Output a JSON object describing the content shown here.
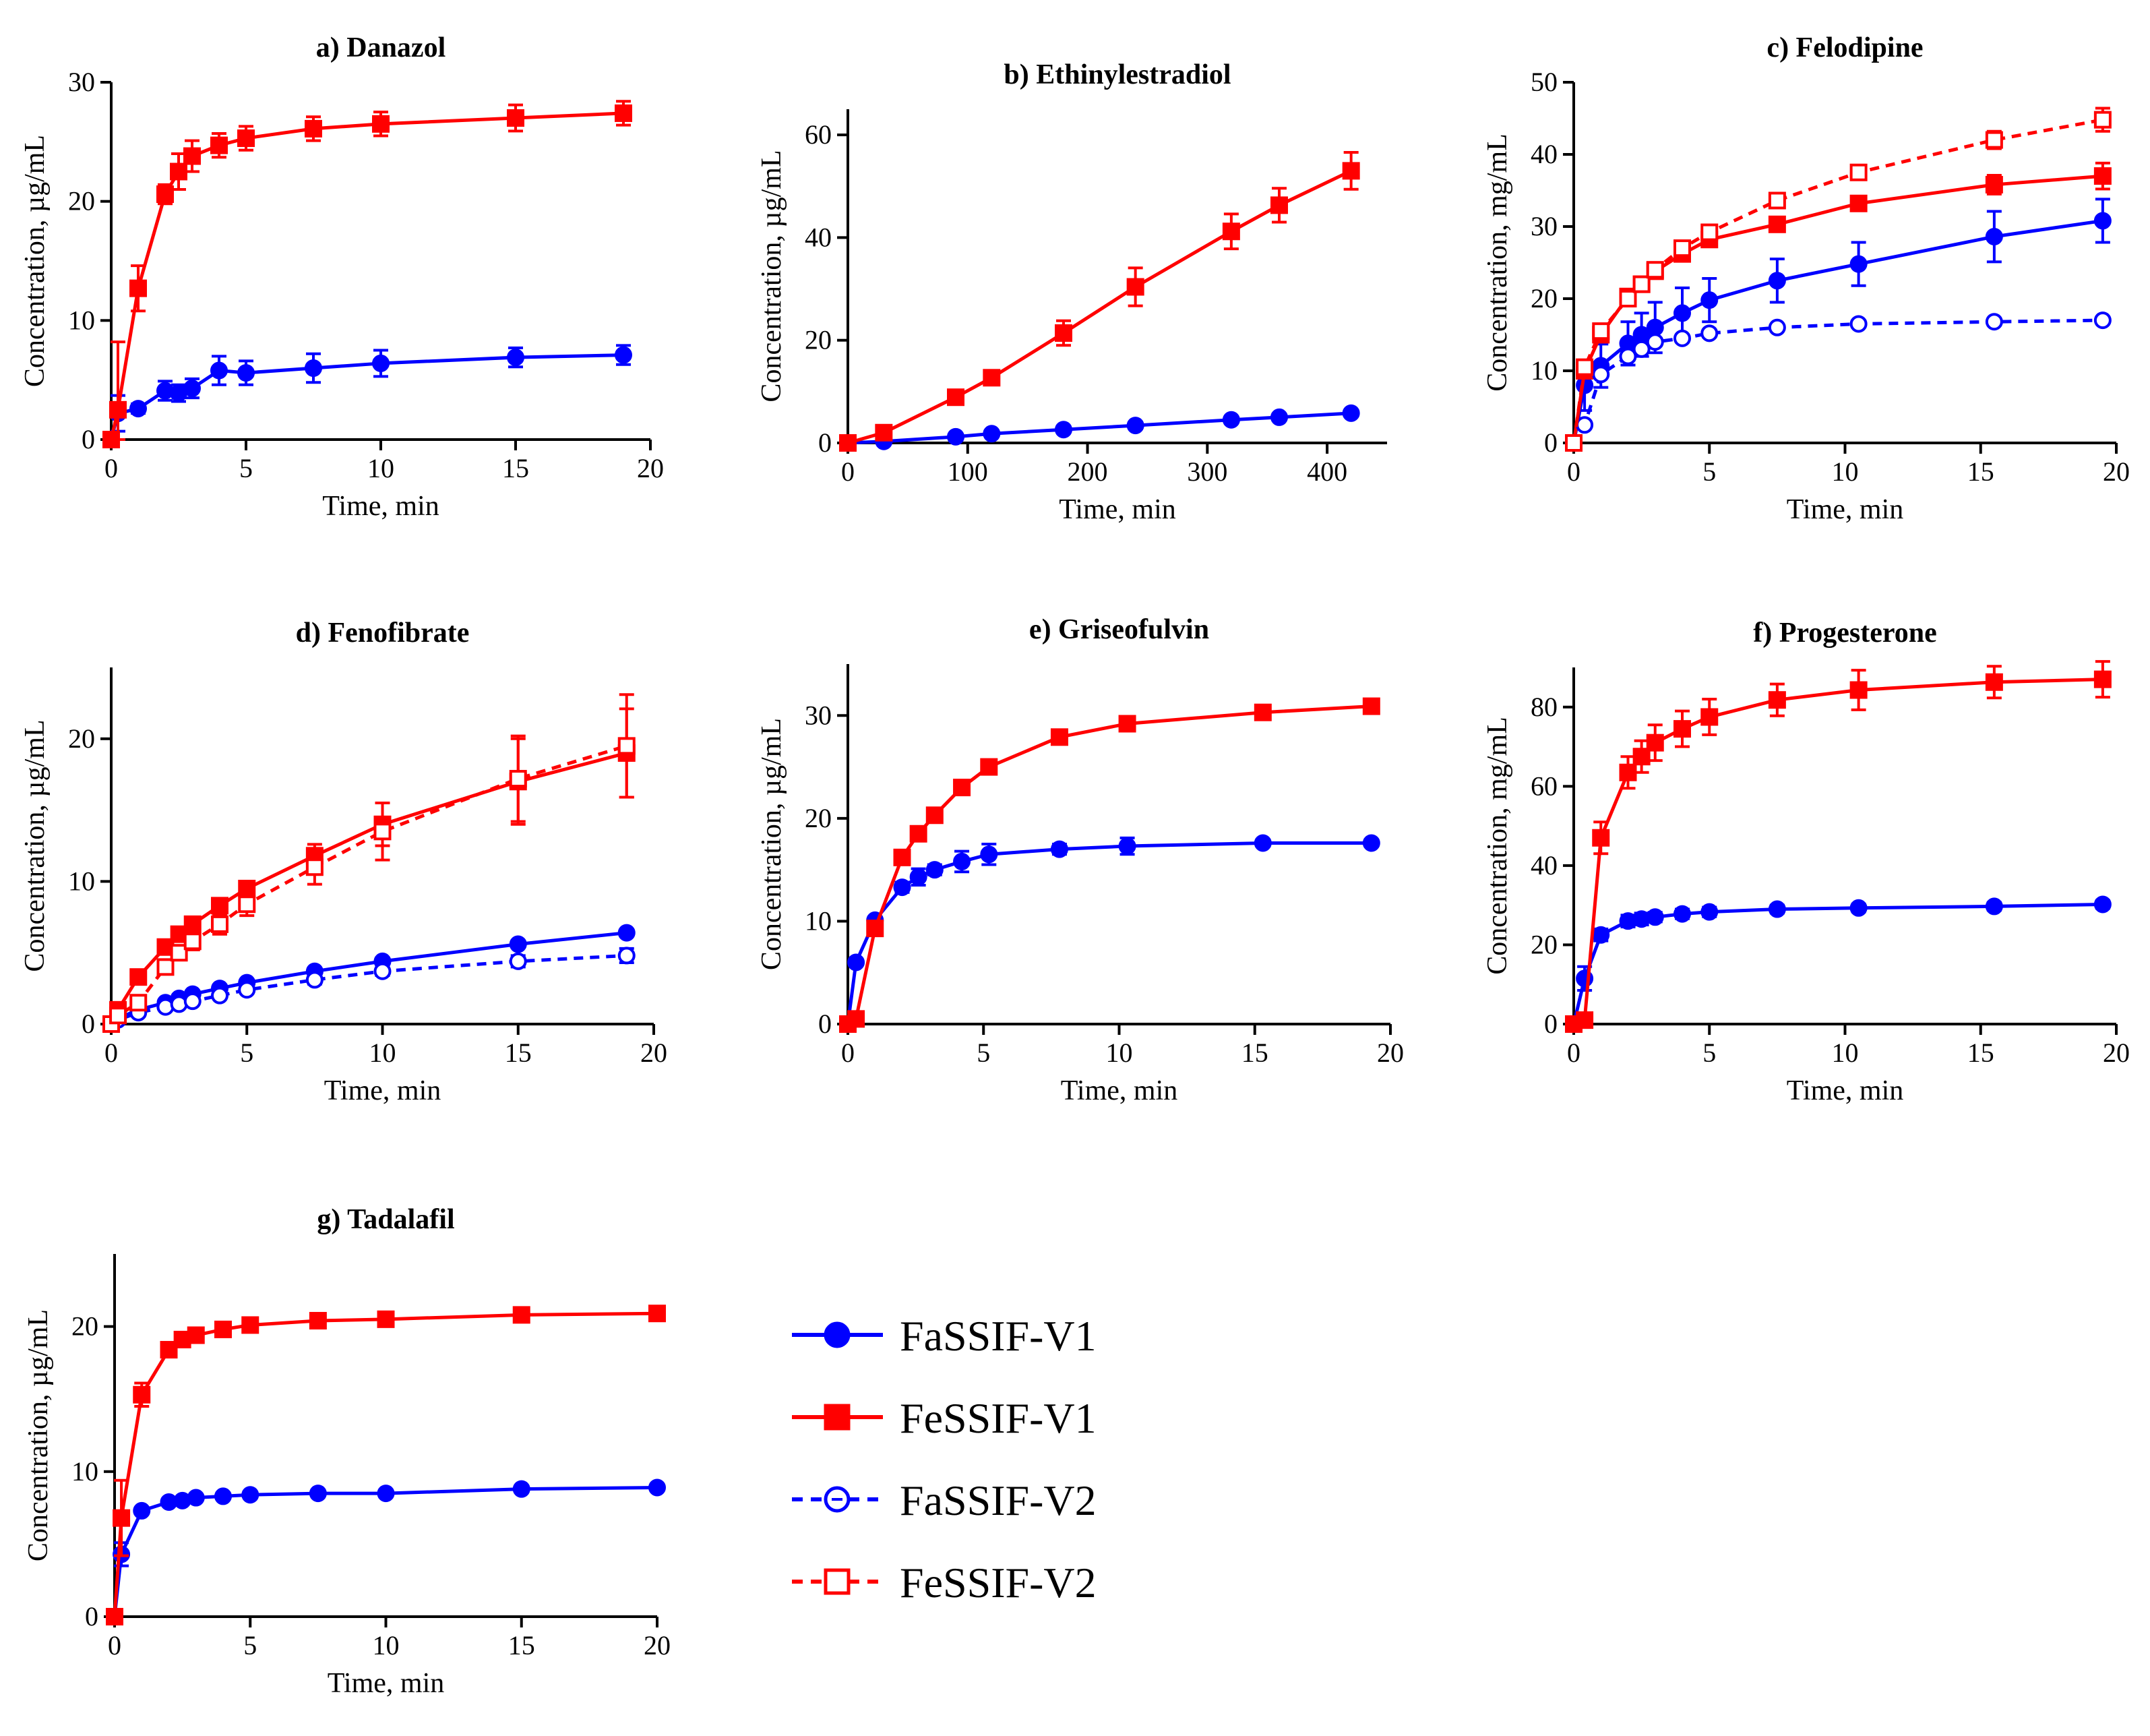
{
  "figure": {
    "legend": [
      {
        "label": "FaSSIF-V1",
        "color": "#0000ff",
        "marker": "circle-filled",
        "dashed": false
      },
      {
        "label": "FeSSIF-V1",
        "color": "#ff0000",
        "marker": "square-filled",
        "dashed": false
      },
      {
        "label": "FaSSIF-V2",
        "color": "#0000ff",
        "marker": "circle-open",
        "dashed": true
      },
      {
        "label": "FeSSIF-V2",
        "color": "#ff0000",
        "marker": "square-open",
        "dashed": true
      }
    ]
  },
  "chart_data": [
    {
      "type": "line",
      "title": "a) Danazol",
      "xlabel": "Time, min",
      "ylabel": "Concentration, µg/mL",
      "xlim": [
        0,
        20
      ],
      "ylim": [
        0,
        30
      ],
      "xticks": [
        0,
        5,
        10,
        15,
        20
      ],
      "yticks": [
        0,
        10,
        20,
        30
      ],
      "series": [
        {
          "name": "FaSSIF-V1",
          "x": [
            0,
            0.25,
            1,
            2,
            2.5,
            3,
            4,
            5,
            7.5,
            10,
            15,
            19
          ],
          "y": [
            0,
            2.2,
            2.6,
            4.1,
            3.9,
            4.3,
            5.8,
            5.6,
            6.0,
            6.4,
            6.9,
            7.1
          ],
          "err": [
            0,
            1.5,
            0.4,
            0.8,
            0.7,
            0.8,
            1.2,
            1.0,
            1.2,
            1.1,
            0.8,
            0.8
          ]
        },
        {
          "name": "FeSSIF-V1",
          "x": [
            0,
            0.25,
            1,
            2,
            2.5,
            3,
            4,
            5,
            7.5,
            10,
            15,
            19
          ],
          "y": [
            0,
            2.5,
            12.7,
            20.6,
            22.5,
            23.8,
            24.7,
            25.3,
            26.1,
            26.5,
            27.0,
            27.4
          ],
          "err": [
            0,
            5.7,
            1.9,
            0.8,
            1.5,
            1.3,
            1.0,
            1.0,
            1.0,
            1.0,
            1.1,
            1.0
          ]
        }
      ]
    },
    {
      "type": "line",
      "title": "b) Ethinylestradiol",
      "xlabel": "Time, min",
      "ylabel": "Concentration, µg/mL",
      "xlim": [
        0,
        450
      ],
      "ylim": [
        0,
        65
      ],
      "xticks": [
        0,
        100,
        200,
        300,
        400
      ],
      "yticks": [
        0,
        20,
        40,
        60
      ],
      "series": [
        {
          "name": "FaSSIF-V1",
          "x": [
            0,
            30,
            90,
            120,
            180,
            240,
            320,
            360,
            420
          ],
          "y": [
            0,
            0.3,
            1.2,
            1.8,
            2.6,
            3.4,
            4.5,
            5.0,
            5.8
          ],
          "err": [
            0,
            0,
            0,
            0,
            0,
            0,
            0,
            0,
            0
          ]
        },
        {
          "name": "FeSSIF-V1",
          "x": [
            0,
            30,
            90,
            120,
            180,
            240,
            320,
            360,
            420
          ],
          "y": [
            0,
            2.0,
            8.9,
            12.7,
            21.4,
            30.4,
            41.2,
            46.3,
            53.0
          ],
          "err": [
            0,
            0,
            0.6,
            0.6,
            2.4,
            3.7,
            3.4,
            3.3,
            3.6
          ]
        }
      ]
    },
    {
      "type": "line",
      "title": "c) Felodipine",
      "xlabel": "Time, min",
      "ylabel": "Concentration, mg/mL",
      "xlim": [
        0,
        20
      ],
      "ylim": [
        0,
        50
      ],
      "xticks": [
        0,
        5,
        10,
        15,
        20
      ],
      "yticks": [
        0,
        10,
        20,
        30,
        40,
        50
      ],
      "series": [
        {
          "name": "FaSSIF-V1",
          "x": [
            0,
            0.4,
            1,
            2,
            2.5,
            3,
            4,
            5,
            7.5,
            10.5,
            15.5,
            19.5
          ],
          "y": [
            0,
            8.0,
            10.7,
            13.8,
            15.0,
            16.0,
            18.0,
            19.8,
            22.5,
            24.8,
            28.6,
            30.8
          ],
          "err": [
            0,
            3.5,
            3.0,
            3.0,
            3.0,
            3.5,
            3.5,
            3.0,
            3.0,
            3.0,
            3.5,
            3.0
          ]
        },
        {
          "name": "FeSSIF-V1",
          "x": [
            0,
            0.4,
            1,
            2,
            2.5,
            3,
            4,
            5,
            7.5,
            10.5,
            15.5,
            19.5
          ],
          "y": [
            0,
            10.0,
            15.0,
            20.3,
            22.0,
            23.8,
            26.2,
            28.2,
            30.3,
            33.2,
            35.8,
            37.0
          ],
          "err": [
            0,
            1.0,
            1.0,
            0.8,
            0.8,
            0.8,
            0.8,
            1.0,
            0.8,
            0.8,
            1.3,
            1.8
          ]
        },
        {
          "name": "FaSSIF-V2",
          "x": [
            0,
            0.4,
            1,
            2,
            2.5,
            3,
            4,
            5,
            7.5,
            10.5,
            15.5,
            19.5
          ],
          "y": [
            0,
            2.5,
            9.5,
            12.0,
            13.0,
            14.0,
            14.5,
            15.2,
            16.0,
            16.5,
            16.8,
            17.0
          ],
          "err": [
            0,
            0,
            0,
            0.5,
            0.5,
            0.5,
            0.5,
            0.5,
            0.4,
            0.4,
            0.4,
            0.4
          ]
        },
        {
          "name": "FeSSIF-V2",
          "x": [
            0,
            0.4,
            1,
            2,
            2.5,
            3,
            4,
            5,
            7.5,
            10.5,
            15.5,
            19.5
          ],
          "y": [
            0,
            10.5,
            15.5,
            20.0,
            22.0,
            24.0,
            27.0,
            29.2,
            33.6,
            37.5,
            42.0,
            44.8
          ],
          "err": [
            0,
            0.5,
            0.5,
            0.6,
            0.6,
            0.6,
            0.6,
            0.6,
            0.6,
            0.8,
            1.2,
            1.6
          ]
        }
      ]
    },
    {
      "type": "line",
      "title": "d) Fenofibrate",
      "xlabel": "Time, min",
      "ylabel": "Concentration, µg/mL",
      "xlim": [
        0,
        20
      ],
      "ylim": [
        0,
        25
      ],
      "xticks": [
        0,
        5,
        10,
        15,
        20
      ],
      "yticks": [
        0,
        10,
        20
      ],
      "series": [
        {
          "name": "FaSSIF-V1",
          "x": [
            0,
            0.25,
            1,
            2,
            2.5,
            3,
            4,
            5,
            7.5,
            10,
            15,
            19
          ],
          "y": [
            0,
            0.4,
            1.0,
            1.5,
            1.8,
            2.1,
            2.5,
            2.9,
            3.7,
            4.4,
            5.6,
            6.4
          ],
          "err": [
            0,
            0,
            0,
            0,
            0,
            0,
            0,
            0,
            0,
            0,
            0,
            0
          ]
        },
        {
          "name": "FeSSIF-V1",
          "x": [
            0,
            0.25,
            1,
            2,
            2.5,
            3,
            4,
            5,
            7.5,
            10,
            15,
            19
          ],
          "y": [
            0,
            1.0,
            3.3,
            5.4,
            6.3,
            7.0,
            8.3,
            9.5,
            11.8,
            14.0,
            17.0,
            19.0
          ],
          "err": [
            0,
            0.3,
            0.4,
            0.4,
            0.4,
            0.5,
            0.5,
            0.5,
            0.8,
            1.5,
            3.0,
            3.1
          ]
        },
        {
          "name": "FaSSIF-V2",
          "x": [
            0,
            0.25,
            1,
            2,
            2.5,
            3,
            4,
            5,
            7.5,
            10,
            15,
            19
          ],
          "y": [
            0,
            0.3,
            0.8,
            1.2,
            1.4,
            1.6,
            2.0,
            2.4,
            3.1,
            3.7,
            4.4,
            4.8
          ],
          "err": [
            0,
            0,
            0,
            0,
            0,
            0,
            0,
            0.2,
            0.3,
            0.3,
            0.4,
            0.5
          ]
        },
        {
          "name": "FeSSIF-V2",
          "x": [
            0,
            0.25,
            1,
            2,
            2.5,
            3,
            4,
            5,
            7.5,
            10,
            15,
            19
          ],
          "y": [
            0,
            0.6,
            1.5,
            4.0,
            5.0,
            5.8,
            7.0,
            8.4,
            11.0,
            13.5,
            17.2,
            19.5
          ],
          "err": [
            0,
            0.3,
            0.4,
            0.5,
            0.5,
            0.6,
            0.7,
            0.8,
            1.2,
            2.0,
            3.0,
            3.6
          ]
        }
      ]
    },
    {
      "type": "line",
      "title": "e) Griseofulvin",
      "xlabel": "Time, min",
      "ylabel": "Concentration, µg/mL",
      "xlim": [
        0,
        20
      ],
      "ylim": [
        0,
        35
      ],
      "xticks": [
        0,
        5,
        10,
        15,
        20
      ],
      "yticks": [
        0,
        10,
        20,
        30
      ],
      "series": [
        {
          "name": "FaSSIF-V1",
          "x": [
            0,
            0.3,
            1,
            2,
            2.6,
            3.2,
            4.2,
            5.2,
            7.8,
            10.3,
            15.3,
            19.3
          ],
          "y": [
            0,
            6.0,
            10.1,
            13.3,
            14.3,
            15.0,
            15.8,
            16.5,
            17.0,
            17.3,
            17.6,
            17.6
          ],
          "err": [
            0,
            0.3,
            0.3,
            0.5,
            0.8,
            0.5,
            1.0,
            1.0,
            0.5,
            0.8,
            0.3,
            0.3
          ]
        },
        {
          "name": "FeSSIF-V1",
          "x": [
            0,
            0.3,
            1,
            2,
            2.6,
            3.2,
            4.2,
            5.2,
            7.8,
            10.3,
            15.3,
            19.3
          ],
          "y": [
            0,
            0.5,
            9.3,
            16.2,
            18.5,
            20.3,
            23.0,
            25.0,
            27.9,
            29.2,
            30.3,
            30.9
          ],
          "err": [
            0,
            0,
            0.5,
            0.5,
            0.5,
            0.5,
            0.5,
            0.4,
            0.4,
            0.4,
            0.4,
            0.4
          ]
        }
      ]
    },
    {
      "type": "line",
      "title": "f) Progesterone",
      "xlabel": "Time, min",
      "ylabel": "Concentration, mg/mL",
      "xlim": [
        0,
        20
      ],
      "ylim": [
        0,
        90
      ],
      "xticks": [
        0,
        5,
        10,
        15,
        20
      ],
      "yticks": [
        0,
        20,
        40,
        60,
        80
      ],
      "series": [
        {
          "name": "FaSSIF-V1",
          "x": [
            0,
            0.4,
            1,
            2,
            2.5,
            3,
            4,
            5,
            7.5,
            10.5,
            15.5,
            19.5
          ],
          "y": [
            0,
            11.5,
            22.5,
            26.0,
            26.5,
            27.0,
            27.8,
            28.3,
            29.0,
            29.3,
            29.7,
            30.2
          ],
          "err": [
            0,
            3.0,
            1.5,
            1.5,
            1.5,
            1.2,
            1.2,
            1.2,
            1.0,
            1.0,
            1.0,
            1.0
          ]
        },
        {
          "name": "FeSSIF-V1",
          "x": [
            0,
            0.4,
            1,
            2,
            2.5,
            3,
            4,
            5,
            7.5,
            10.5,
            15.5,
            19.5
          ],
          "y": [
            0,
            1.0,
            47.0,
            63.5,
            67.5,
            71.0,
            74.5,
            77.5,
            81.8,
            84.3,
            86.3,
            87.0
          ],
          "err": [
            0,
            0.5,
            4.0,
            4.0,
            4.0,
            4.5,
            4.5,
            4.5,
            4.0,
            5.0,
            4.0,
            4.5
          ]
        }
      ]
    },
    {
      "type": "line",
      "title": "g) Tadalafil",
      "xlabel": "Time, min",
      "ylabel": "Concentration, µg/mL",
      "xlim": [
        0,
        20
      ],
      "ylim": [
        0,
        25
      ],
      "xticks": [
        0,
        5,
        10,
        15,
        20
      ],
      "yticks": [
        0,
        10,
        20
      ],
      "series": [
        {
          "name": "FaSSIF-V1",
          "x": [
            0,
            0.25,
            1,
            2,
            2.5,
            3,
            4,
            5,
            7.5,
            10,
            15,
            20
          ],
          "y": [
            0,
            4.3,
            7.3,
            7.9,
            8.0,
            8.2,
            8.3,
            8.4,
            8.5,
            8.5,
            8.8,
            8.9
          ],
          "err": [
            0,
            0.8,
            0.2,
            0.2,
            0.2,
            0.2,
            0.2,
            0.2,
            0.2,
            0.2,
            0.2,
            0.2
          ]
        },
        {
          "name": "FeSSIF-V1",
          "x": [
            0,
            0.25,
            1,
            2,
            2.5,
            3,
            4,
            5,
            7.5,
            10,
            15,
            20
          ],
          "y": [
            0,
            6.8,
            15.3,
            18.4,
            19.1,
            19.4,
            19.8,
            20.1,
            20.4,
            20.5,
            20.8,
            20.9
          ],
          "err": [
            0,
            2.6,
            0.8,
            0.3,
            0.3,
            0.3,
            0.3,
            0.3,
            0.2,
            0.2,
            0.2,
            0.2
          ]
        }
      ]
    }
  ]
}
